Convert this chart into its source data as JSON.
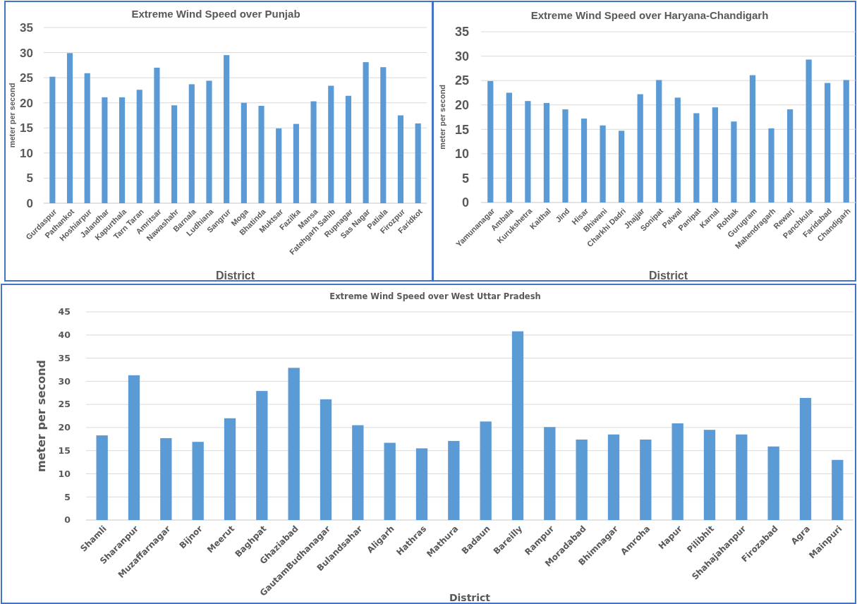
{
  "chart_data": [
    {
      "type": "bar",
      "title": "Extreme Wind Speed over Punjab",
      "xlabel": "District",
      "ylabel": "meter per second",
      "categories": [
        "Gurdaspur",
        "Pathankot",
        "Hoshiarpur",
        "Jalandhar",
        "Kapurthala",
        "Tarn Taran",
        "Amritsar",
        "Nawashahr",
        "Barnala",
        "Ludhiana",
        "Sangrur",
        "Moga",
        "Bhatinda",
        "Muktsar",
        "Fazilka",
        "Mansa",
        "Fatehgarh Sahib",
        "Rupnagar",
        "Sas Nagar",
        "Patiala",
        "Firozpur",
        "Faridkot"
      ],
      "values": [
        25.2,
        29.9,
        25.9,
        21.1,
        21.1,
        22.6,
        27.0,
        19.5,
        23.7,
        24.4,
        29.5,
        20.0,
        19.4,
        14.9,
        15.8,
        20.3,
        23.4,
        21.4,
        28.1,
        27.1,
        17.5,
        15.9
      ],
      "color": "#5b9bd5",
      "ylim": [
        0,
        35
      ],
      "yticks": [
        0,
        5,
        10,
        15,
        20,
        25,
        30,
        35
      ],
      "grid": "y"
    },
    {
      "type": "bar",
      "title": "Extreme Wind Speed over Haryana-Chandigarh",
      "xlabel": "District",
      "ylabel": "meter per second",
      "categories": [
        "Yamunanagar",
        "Ambala",
        "Kurukshetra",
        "Kaithal",
        "Jind",
        "Hisar",
        "Bhiwani",
        "Charkhi Dadri",
        "Jhajjar",
        "Sonipat",
        "Palwal",
        "Panipat",
        "Karnal",
        "Rohtak",
        "Gurugram",
        "Mahendragarh",
        "Rewari",
        "Panchkula",
        "Faridabad",
        "Chandigarh"
      ],
      "values": [
        24.9,
        22.5,
        20.8,
        20.4,
        19.1,
        17.2,
        15.8,
        14.7,
        22.2,
        25.1,
        21.5,
        18.3,
        19.5,
        16.6,
        26.1,
        15.2,
        19.1,
        29.3,
        24.5,
        25.1
      ],
      "color": "#5b9bd5",
      "ylim": [
        0,
        35
      ],
      "yticks": [
        0,
        5,
        10,
        15,
        20,
        25,
        30,
        35
      ],
      "grid": "y"
    },
    {
      "type": "bar",
      "title": "Extreme Wind Speed over West Uttar Pradesh",
      "xlabel": "District",
      "ylabel": "meter per second",
      "categories": [
        "Shamli",
        "Sharanpur",
        "Muzaffarnagar",
        "Bijnor",
        "Meerut",
        "Baghpat",
        "Ghaziabad",
        "GautamBudhanagar",
        "Bulandsahar",
        "Aligarh",
        "Hathras",
        "Mathura",
        "Badaun",
        "Bareilly",
        "Rampur",
        "Moradabad",
        "Bhimnagar",
        "Amroha",
        "Hapur",
        "Pilibhit",
        "Shahajahanpur",
        "Firozabad",
        "Agra",
        "Mainpuri"
      ],
      "values": [
        18.3,
        31.3,
        17.7,
        16.9,
        22.0,
        27.9,
        32.9,
        26.1,
        20.5,
        16.7,
        15.5,
        17.1,
        21.3,
        40.8,
        20.1,
        17.4,
        18.5,
        17.4,
        20.9,
        19.5,
        18.5,
        15.9,
        26.4,
        13.0
      ],
      "color": "#5b9bd5",
      "ylim": [
        0,
        45
      ],
      "yticks": [
        0,
        5,
        10,
        15,
        20,
        25,
        30,
        35,
        40,
        45
      ],
      "grid": "y"
    }
  ]
}
